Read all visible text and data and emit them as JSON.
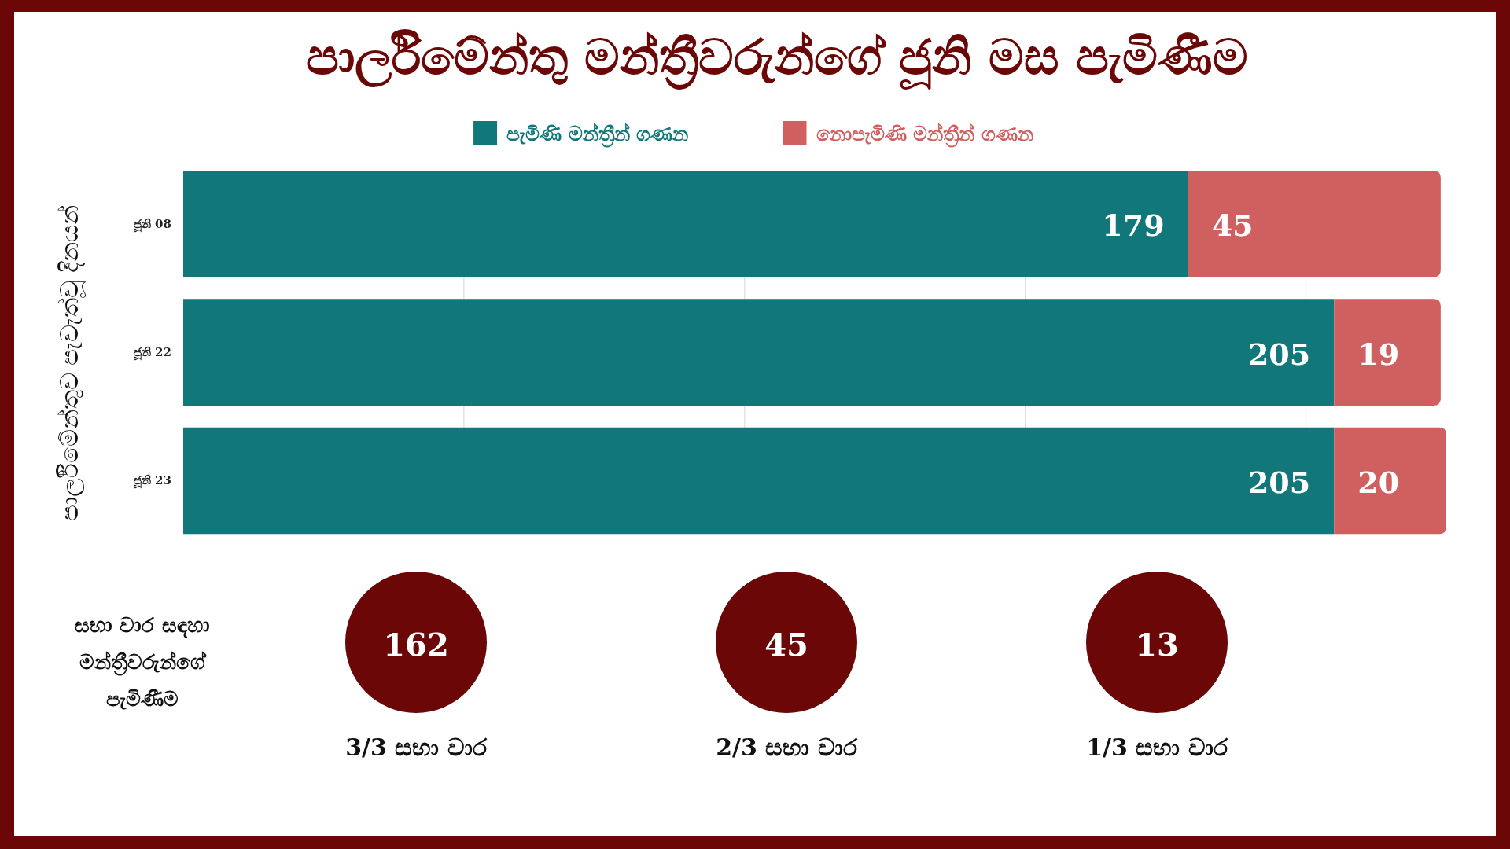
{
  "chart_data": [
    {
      "type": "bar",
      "orientation": "horizontal",
      "stacked": true,
      "title": "පාර්ලිමේන්තු මන්ත්‍රීවරුන්ගේ ජූනි මස පැමිණීම",
      "ylabel": "පාර්ලිමේන්තුව පැවැත්වූ දිනයන්",
      "categories": [
        "ජූනි 08",
        "ජූනි 22",
        "ජූනි 23"
      ],
      "series": [
        {
          "name": "පැමිණි මන්ත්‍රීන් ගණන",
          "color": "#11777a",
          "values": [
            179,
            205,
            205
          ]
        },
        {
          "name": "නොපැමිණි මන්ත්‍රීන් ගණන",
          "color": "#d05f5f",
          "values": [
            45,
            19,
            20
          ]
        }
      ],
      "xlim": [
        0,
        225
      ],
      "xticks": [
        {
          "value": 50,
          "label": null
        },
        {
          "value": 100,
          "label": null
        },
        {
          "value": 150,
          "label": null
        },
        {
          "value": 200,
          "label": null
        }
      ],
      "grid": "x",
      "legend": "top",
      "data_labels": true,
      "tick_labels": "y"
    },
    {
      "type": "other",
      "title": "සභා වාර සඳහා මන්ත්‍රීවරුන්ගේ පැමිණීම",
      "categories": [
        "3/3 සභා වාර",
        "2/3 සභා වාර",
        "1/3 සභා වාර"
      ],
      "values": [
        162,
        45,
        13
      ],
      "color": "#6b0707",
      "data_labels": true
    }
  ]
}
